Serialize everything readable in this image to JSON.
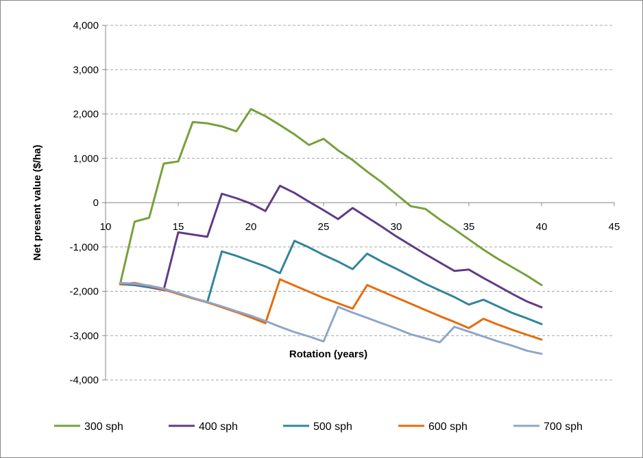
{
  "chart_data": {
    "type": "line",
    "title": "",
    "xlabel": "Rotation (years)",
    "ylabel": "Net present value ($/ha)",
    "xlim": [
      10,
      45
    ],
    "ylim": [
      -4000,
      4000
    ],
    "x_ticks": [
      10,
      15,
      20,
      25,
      30,
      35,
      40,
      45
    ],
    "y_ticks": [
      4000,
      3000,
      2000,
      1000,
      0,
      -1000,
      -2000,
      -3000,
      -4000
    ],
    "x_tick_labels": [
      "10",
      "15",
      "20",
      "25",
      "30",
      "35",
      "40",
      "45"
    ],
    "y_tick_labels": [
      "4,000",
      "3,000",
      "2,000",
      "1,000",
      "0",
      "-1,000",
      "-2,000",
      "-3,000",
      "-4,000"
    ],
    "grid": "horizontal dashed",
    "legend_position": "bottom",
    "series": [
      {
        "name": "300 sph",
        "color": "#77A03A",
        "x": [
          11,
          12,
          13,
          14,
          15,
          16,
          17,
          18,
          19,
          20,
          21,
          22,
          23,
          24,
          25,
          26,
          27,
          28,
          29,
          30,
          31,
          32,
          33,
          34,
          35,
          36,
          37,
          38,
          39,
          40
        ],
        "values": [
          -1840,
          -430,
          -340,
          880,
          930,
          1820,
          1790,
          1720,
          1610,
          2110,
          1950,
          1750,
          1540,
          1300,
          1440,
          1180,
          960,
          700,
          460,
          190,
          -80,
          -140,
          -380,
          -600,
          -830,
          -1060,
          -1270,
          -1460,
          -1650,
          -1860
        ]
      },
      {
        "name": "400 sph",
        "color": "#5F3B86",
        "x": [
          11,
          12,
          13,
          14,
          15,
          16,
          17,
          18,
          19,
          20,
          21,
          22,
          23,
          24,
          25,
          26,
          27,
          28,
          29,
          30,
          31,
          32,
          33,
          34,
          35,
          36,
          37,
          38,
          39,
          40
        ],
        "values": [
          -1840,
          -1860,
          -1910,
          -1970,
          -670,
          -720,
          -770,
          200,
          100,
          -20,
          -190,
          380,
          220,
          20,
          -170,
          -370,
          -120,
          -330,
          -540,
          -760,
          -960,
          -1160,
          -1350,
          -1540,
          -1510,
          -1700,
          -1880,
          -2060,
          -2230,
          -2360
        ]
      },
      {
        "name": "500 sph",
        "color": "#31849B",
        "x": [
          11,
          12,
          13,
          14,
          15,
          16,
          17,
          18,
          19,
          20,
          21,
          22,
          23,
          24,
          25,
          26,
          27,
          28,
          29,
          30,
          31,
          32,
          33,
          34,
          35,
          36,
          37,
          38,
          39,
          40
        ],
        "values": [
          -1840,
          -1850,
          -1900,
          -1960,
          -2040,
          -2150,
          -2250,
          -1100,
          -1200,
          -1320,
          -1440,
          -1590,
          -860,
          -1010,
          -1180,
          -1330,
          -1500,
          -1150,
          -1330,
          -1490,
          -1660,
          -1830,
          -1980,
          -2130,
          -2300,
          -2190,
          -2340,
          -2490,
          -2610,
          -2740
        ]
      },
      {
        "name": "600 sph",
        "color": "#E46C0A",
        "x": [
          11,
          12,
          13,
          14,
          15,
          16,
          17,
          18,
          19,
          20,
          21,
          22,
          23,
          24,
          25,
          26,
          27,
          28,
          29,
          30,
          31,
          32,
          33,
          34,
          35,
          36,
          37,
          38,
          39,
          40
        ],
        "values": [
          -1840,
          -1810,
          -1880,
          -1960,
          -2060,
          -2160,
          -2250,
          -2360,
          -2470,
          -2590,
          -2720,
          -1730,
          -1870,
          -2010,
          -2150,
          -2270,
          -2390,
          -1860,
          -2000,
          -2140,
          -2280,
          -2420,
          -2560,
          -2690,
          -2830,
          -2620,
          -2750,
          -2870,
          -2980,
          -3090
        ]
      },
      {
        "name": "700 sph",
        "color": "#8EA5CB",
        "x": [
          11,
          12,
          13,
          14,
          15,
          16,
          17,
          18,
          19,
          20,
          21,
          22,
          23,
          24,
          25,
          26,
          27,
          28,
          29,
          30,
          31,
          32,
          33,
          34,
          35,
          36,
          37,
          38,
          39,
          40
        ],
        "values": [
          -1810,
          -1830,
          -1870,
          -1940,
          -2040,
          -2150,
          -2240,
          -2340,
          -2450,
          -2550,
          -2670,
          -2800,
          -2920,
          -3020,
          -3130,
          -2350,
          -2480,
          -2600,
          -2720,
          -2840,
          -2970,
          -3060,
          -3150,
          -2800,
          -2910,
          -3020,
          -3130,
          -3230,
          -3340,
          -3410
        ]
      }
    ]
  }
}
